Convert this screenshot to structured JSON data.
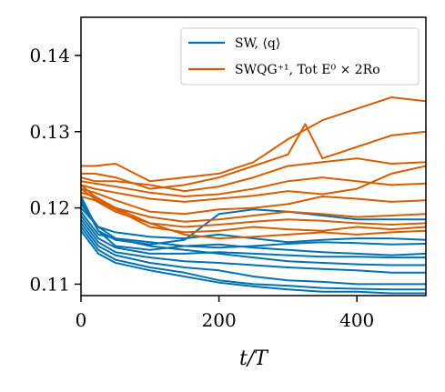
{
  "chart_data": {
    "type": "line",
    "title": "",
    "xlabel": "t/T",
    "ylabel": "",
    "xlim": [
      0,
      500
    ],
    "ylim": [
      0.1085,
      0.145
    ],
    "xticks": [
      0,
      200,
      400
    ],
    "xtick_labels": [
      "0",
      "200",
      "400"
    ],
    "yticks": [
      0.11,
      0.12,
      0.13,
      0.14
    ],
    "ytick_labels": [
      "0.11",
      "0.12",
      "0.13",
      "0.14"
    ],
    "grid": false,
    "legend_position": "top-right",
    "legend": [
      {
        "label": "SW, ⟨q⟩",
        "color": "#0072B2"
      },
      {
        "label": "SWQG⁺¹, Tot E⁰ × 2Ro",
        "color": "#D55E00"
      }
    ],
    "series": [
      {
        "group": "blue",
        "color": "#0072B2",
        "x": [
          0,
          25,
          50,
          100,
          150,
          200,
          250,
          300,
          350,
          400,
          450,
          500
        ],
        "y": [
          0.1215,
          0.117,
          0.1158,
          0.1152,
          0.1158,
          0.1192,
          0.1198,
          0.1195,
          0.119,
          0.1185,
          0.1185,
          0.1185
        ]
      },
      {
        "group": "blue",
        "color": "#0072B2",
        "x": [
          0,
          25,
          50,
          100,
          150,
          200,
          250,
          300,
          350,
          400,
          450,
          500
        ],
        "y": [
          0.12,
          0.1175,
          0.1168,
          0.1162,
          0.116,
          0.1165,
          0.116,
          0.1155,
          0.1158,
          0.116,
          0.116,
          0.1158
        ]
      },
      {
        "group": "blue",
        "color": "#0072B2",
        "x": [
          0,
          25,
          50,
          100,
          150,
          200,
          250,
          300,
          350,
          400,
          450,
          500
        ],
        "y": [
          0.1195,
          0.1165,
          0.116,
          0.1155,
          0.115,
          0.1148,
          0.115,
          0.1153,
          0.1155,
          0.1154,
          0.1152,
          0.1153
        ]
      },
      {
        "group": "blue",
        "color": "#0072B2",
        "x": [
          0,
          25,
          50,
          100,
          150,
          200,
          250,
          300,
          350,
          400,
          450,
          500
        ],
        "y": [
          0.121,
          0.117,
          0.115,
          0.1145,
          0.115,
          0.1152,
          0.1148,
          0.1145,
          0.1142,
          0.114,
          0.1138,
          0.114
        ]
      },
      {
        "group": "blue",
        "color": "#0072B2",
        "x": [
          0,
          25,
          50,
          100,
          150,
          200,
          250,
          300,
          350,
          400,
          450,
          500
        ],
        "y": [
          0.119,
          0.116,
          0.1148,
          0.114,
          0.114,
          0.1142,
          0.114,
          0.1138,
          0.1136,
          0.1136,
          0.1135,
          0.1135
        ]
      },
      {
        "group": "blue",
        "color": "#0072B2",
        "x": [
          0,
          25,
          50,
          100,
          150,
          200,
          250,
          300,
          350,
          400,
          450,
          500
        ],
        "y": [
          0.1205,
          0.1175,
          0.116,
          0.115,
          0.1145,
          0.114,
          0.1135,
          0.113,
          0.1128,
          0.1126,
          0.1125,
          0.1125
        ]
      },
      {
        "group": "blue",
        "color": "#0072B2",
        "x": [
          0,
          25,
          50,
          100,
          150,
          200,
          250,
          300,
          350,
          400,
          450,
          500
        ],
        "y": [
          0.1185,
          0.1155,
          0.1142,
          0.1135,
          0.113,
          0.1128,
          0.1125,
          0.1122,
          0.112,
          0.1118,
          0.1115,
          0.1115
        ]
      },
      {
        "group": "blue",
        "color": "#0072B2",
        "x": [
          0,
          25,
          50,
          100,
          150,
          200,
          250,
          300,
          350,
          400,
          450,
          500
        ],
        "y": [
          0.118,
          0.115,
          0.1138,
          0.1128,
          0.1122,
          0.1118,
          0.111,
          0.1105,
          0.1103,
          0.11,
          0.11,
          0.11
        ]
      },
      {
        "group": "blue",
        "color": "#0072B2",
        "x": [
          0,
          25,
          50,
          100,
          150,
          200,
          250,
          300,
          350,
          400,
          450,
          500
        ],
        "y": [
          0.1175,
          0.1145,
          0.1132,
          0.1122,
          0.1115,
          0.1105,
          0.11,
          0.1098,
          0.1095,
          0.1094,
          0.1093,
          0.1093
        ]
      },
      {
        "group": "blue",
        "color": "#0072B2",
        "x": [
          0,
          25,
          50,
          100,
          150,
          200,
          250,
          300,
          350,
          400,
          450,
          500
        ],
        "y": [
          0.117,
          0.114,
          0.1128,
          0.1118,
          0.111,
          0.1102,
          0.1097,
          0.1093,
          0.109,
          0.109,
          0.1088,
          0.1088
        ]
      },
      {
        "group": "orange",
        "color": "#D55E00",
        "x": [
          0,
          20,
          50,
          100,
          150,
          200,
          250,
          300,
          350,
          400,
          450,
          500
        ],
        "y": [
          0.1255,
          0.1255,
          0.1258,
          0.1235,
          0.124,
          0.1245,
          0.126,
          0.129,
          0.1315,
          0.133,
          0.1345,
          0.134
        ]
      },
      {
        "group": "orange",
        "color": "#D55E00",
        "x": [
          0,
          20,
          50,
          100,
          150,
          200,
          250,
          300,
          325,
          350,
          400,
          450,
          500
        ],
        "y": [
          0.1245,
          0.1245,
          0.124,
          0.1225,
          0.123,
          0.124,
          0.1255,
          0.127,
          0.131,
          0.1265,
          0.128,
          0.1295,
          0.13
        ]
      },
      {
        "group": "orange",
        "color": "#D55E00",
        "x": [
          0,
          20,
          50,
          100,
          150,
          200,
          250,
          300,
          350,
          400,
          450,
          500
        ],
        "y": [
          0.124,
          0.1235,
          0.1235,
          0.123,
          0.1222,
          0.1228,
          0.124,
          0.1255,
          0.126,
          0.1265,
          0.1258,
          0.126
        ]
      },
      {
        "group": "orange",
        "color": "#D55E00",
        "x": [
          0,
          20,
          50,
          100,
          150,
          200,
          250,
          300,
          350,
          400,
          450,
          500
        ],
        "y": [
          0.1235,
          0.1232,
          0.1228,
          0.122,
          0.1215,
          0.1218,
          0.1225,
          0.1235,
          0.124,
          0.1235,
          0.123,
          0.1232
        ]
      },
      {
        "group": "orange",
        "color": "#D55E00",
        "x": [
          0,
          20,
          50,
          100,
          150,
          200,
          250,
          300,
          350,
          400,
          450,
          500
        ],
        "y": [
          0.123,
          0.1225,
          0.122,
          0.1212,
          0.1208,
          0.1212,
          0.1216,
          0.1222,
          0.1218,
          0.1225,
          0.1245,
          0.1255
        ]
      },
      {
        "group": "orange",
        "color": "#D55E00",
        "x": [
          0,
          20,
          50,
          100,
          150,
          200,
          250,
          300,
          350,
          400,
          450,
          500
        ],
        "y": [
          0.1225,
          0.122,
          0.121,
          0.1195,
          0.1192,
          0.1198,
          0.12,
          0.1205,
          0.1215,
          0.1212,
          0.1208,
          0.121
        ]
      },
      {
        "group": "orange",
        "color": "#D55E00",
        "x": [
          0,
          20,
          50,
          100,
          150,
          200,
          250,
          300,
          350,
          400,
          450,
          500
        ],
        "y": [
          0.122,
          0.1215,
          0.12,
          0.1188,
          0.1182,
          0.1185,
          0.119,
          0.1195,
          0.1192,
          0.1188,
          0.119,
          0.1192
        ]
      },
      {
        "group": "orange",
        "color": "#D55E00",
        "x": [
          0,
          20,
          50,
          100,
          150,
          200,
          250,
          300,
          350,
          400,
          450,
          500
        ],
        "y": [
          0.1215,
          0.121,
          0.1195,
          0.118,
          0.1175,
          0.1178,
          0.1182,
          0.1185,
          0.1183,
          0.118,
          0.1178,
          0.118
        ]
      },
      {
        "group": "orange",
        "color": "#D55E00",
        "x": [
          0,
          20,
          50,
          100,
          150,
          200,
          250,
          300,
          350,
          400,
          450,
          500
        ],
        "y": [
          0.1225,
          0.1212,
          0.1198,
          0.1175,
          0.1168,
          0.117,
          0.1175,
          0.1172,
          0.117,
          0.1175,
          0.1172,
          0.1175
        ]
      },
      {
        "group": "orange",
        "color": "#D55E00",
        "x": [
          0,
          20,
          50,
          100,
          150,
          200,
          250,
          300,
          350,
          400,
          450,
          500
        ],
        "y": [
          0.123,
          0.1215,
          0.12,
          0.118,
          0.1165,
          0.116,
          0.1162,
          0.1165,
          0.1168,
          0.1165,
          0.1168,
          0.117
        ]
      }
    ]
  }
}
